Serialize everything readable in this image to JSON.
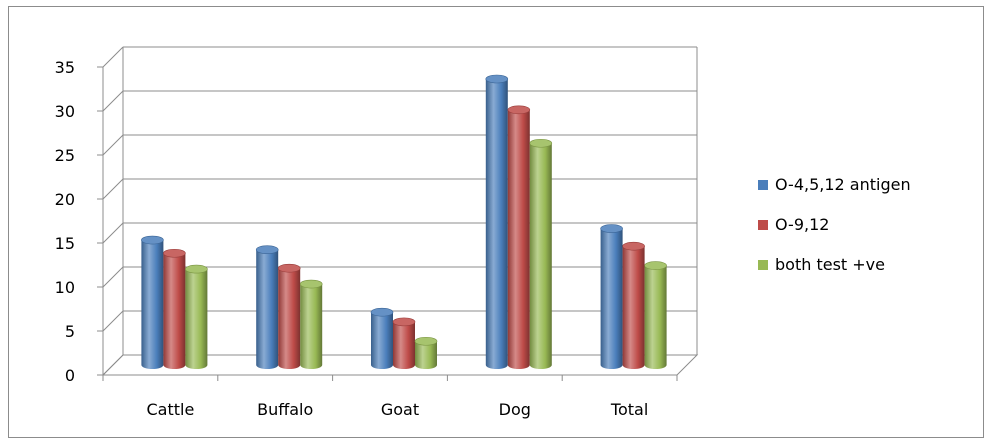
{
  "chart_data": {
    "type": "bar",
    "categories": [
      "Cattle",
      "Buffalo",
      "Goat",
      "Dog",
      "Total"
    ],
    "series": [
      {
        "name": "O-4,5,12 antigen",
        "color": "#4a7ebb",
        "values": [
          14.2,
          13.1,
          6.0,
          32.5,
          15.5
        ]
      },
      {
        "name": "O-9,12",
        "color": "#be4b48",
        "values": [
          12.7,
          11.0,
          4.9,
          29.0,
          13.5
        ]
      },
      {
        "name": "both test +ve",
        "color": "#98b954",
        "values": [
          10.9,
          9.2,
          2.7,
          25.2,
          11.3
        ]
      }
    ],
    "ylim": [
      0,
      35
    ],
    "yticks": [
      0,
      5,
      10,
      15,
      20,
      25,
      30,
      35
    ],
    "grid": true,
    "legend_position": "right",
    "style": "3d-cylinder"
  }
}
